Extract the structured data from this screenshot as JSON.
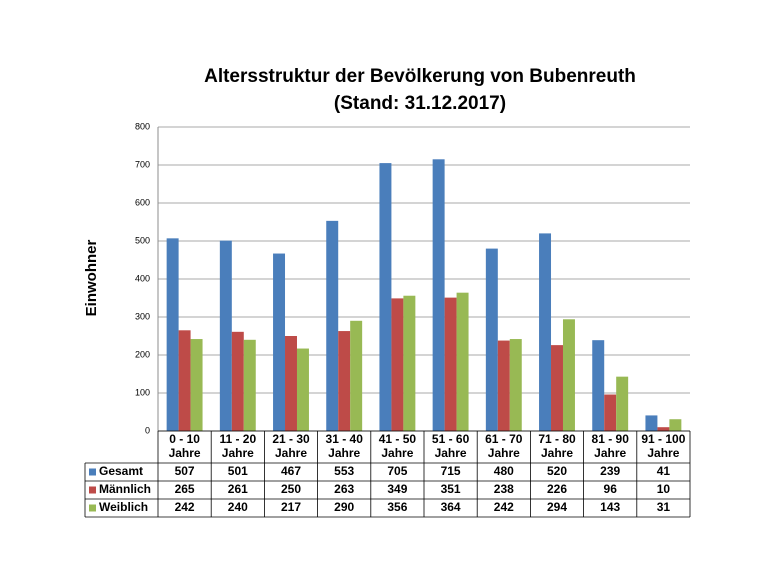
{
  "chart_data": {
    "type": "bar",
    "title": "Altersstruktur der Bevölkerung von Bubenreuth",
    "subtitle": "(Stand: 31.12.2017)",
    "y_label": "Einwohner",
    "categories": [
      "0 - 10 Jahre",
      "11 - 20 Jahre",
      "21 - 30 Jahre",
      "31 - 40 Jahre",
      "41 - 50 Jahre",
      "51 - 60 Jahre",
      "61 - 70 Jahre",
      "71 - 80 Jahre",
      "81 - 90 Jahre",
      "91 - 100 Jahre"
    ],
    "series": [
      {
        "name": "Gesamt",
        "color": "#4a7ebb",
        "values": [
          507,
          501,
          467,
          553,
          705,
          715,
          480,
          520,
          239,
          41
        ]
      },
      {
        "name": "Männlich",
        "color": "#be4b48",
        "values": [
          265,
          261,
          250,
          263,
          349,
          351,
          238,
          226,
          96,
          10
        ]
      },
      {
        "name": "Weiblich",
        "color": "#98b954",
        "values": [
          242,
          240,
          217,
          290,
          356,
          364,
          242,
          294,
          143,
          31
        ]
      }
    ],
    "ylim": [
      0,
      800
    ],
    "yticks": [
      0,
      100,
      200,
      300,
      400,
      500,
      600,
      700,
      800
    ],
    "grid": true
  }
}
